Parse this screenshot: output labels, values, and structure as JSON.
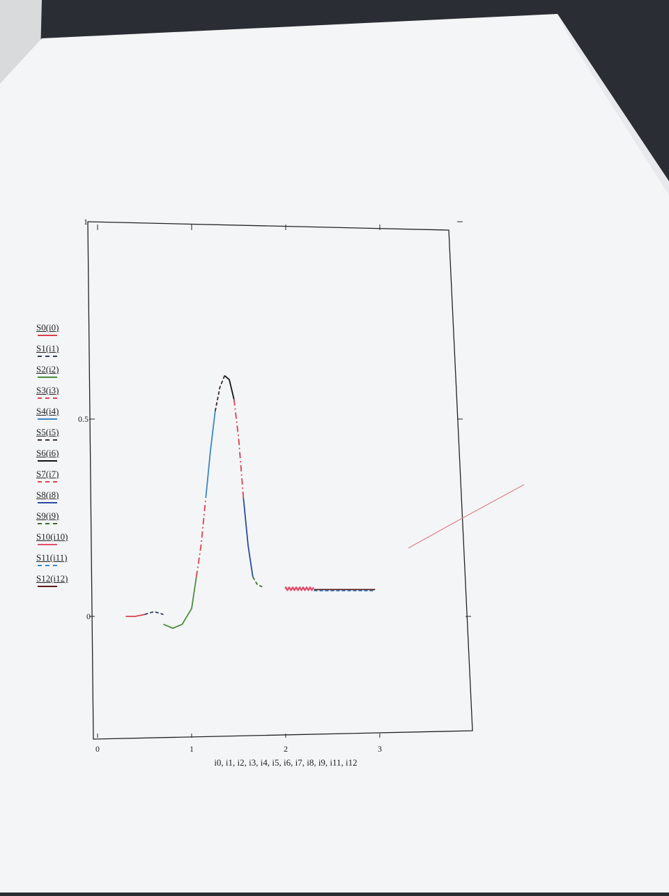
{
  "chart_data": {
    "type": "line",
    "title": "",
    "xlabel": "i0, i1, i2, i3, i4, i5, i6, i7, i8, i9, i11, i12",
    "ylabel": "",
    "xlim": [
      0,
      4
    ],
    "ylim": [
      -0.3,
      1
    ],
    "x_ticks": [
      "0",
      "1",
      "2",
      "3"
    ],
    "y_ticks": [
      "0",
      "0.5",
      "1"
    ],
    "grid": false,
    "legend_position": "left",
    "series": [
      {
        "name": "S0(i0)",
        "color": "#d9404e",
        "dash": "solid",
        "x": [
          0.3,
          0.4,
          0.5
        ],
        "y": [
          0.0,
          0.0,
          0.005
        ]
      },
      {
        "name": "S1(i1)",
        "color": "#2f3c5a",
        "dash": "dashed",
        "x": [
          0.5,
          0.6,
          0.7
        ],
        "y": [
          0.005,
          0.012,
          0.005
        ]
      },
      {
        "name": "S2(i2)",
        "color": "#4b8d3a",
        "dash": "solid",
        "x": [
          0.7,
          0.8,
          0.9,
          1.0,
          1.05
        ],
        "y": [
          -0.02,
          -0.03,
          -0.02,
          0.02,
          0.1
        ]
      },
      {
        "name": "S3(i3)",
        "color": "#d9404e",
        "dash": "dashdot",
        "x": [
          1.05,
          1.1,
          1.15
        ],
        "y": [
          0.1,
          0.18,
          0.3
        ]
      },
      {
        "name": "S4(i4)",
        "color": "#3a86c4",
        "dash": "solid",
        "x": [
          1.15,
          1.2,
          1.25
        ],
        "y": [
          0.3,
          0.42,
          0.52
        ]
      },
      {
        "name": "S5(i5)",
        "color": "#3b2b2b",
        "dash": "dashed",
        "x": [
          1.25,
          1.3,
          1.35
        ],
        "y": [
          0.52,
          0.58,
          0.61
        ]
      },
      {
        "name": "S6(i6)",
        "color": "#111111",
        "dash": "solid",
        "x": [
          1.35,
          1.4,
          1.45
        ],
        "y": [
          0.61,
          0.6,
          0.55
        ]
      },
      {
        "name": "S7(i7)",
        "color": "#d9404e",
        "dash": "dashdot",
        "x": [
          1.45,
          1.5,
          1.55
        ],
        "y": [
          0.55,
          0.45,
          0.3
        ]
      },
      {
        "name": "S8(i8)",
        "color": "#2a4aa0",
        "dash": "solid",
        "x": [
          1.55,
          1.6,
          1.65
        ],
        "y": [
          0.3,
          0.18,
          0.1
        ]
      },
      {
        "name": "S9(i9)",
        "color": "#3d6b2c",
        "dash": "dashed",
        "x": [
          1.65,
          1.7,
          1.75
        ],
        "y": [
          0.1,
          0.08,
          0.075
        ]
      },
      {
        "name": "S10(i10)",
        "color": "#e0506a",
        "dash": "sawtooth",
        "x": [
          2.0,
          2.3
        ],
        "y": [
          0.07,
          0.07
        ]
      },
      {
        "name": "S11(i11)",
        "color": "#3a86c4",
        "dash": "dashed",
        "x": [
          2.3,
          2.95
        ],
        "y": [
          0.065,
          0.065
        ]
      },
      {
        "name": "S12(i12)",
        "color": "#5a1a1a",
        "dash": "solid",
        "x": [
          2.3,
          2.95
        ],
        "y": [
          0.068,
          0.068
        ]
      }
    ]
  },
  "legend": [
    {
      "label": "S0(i0)",
      "color": "#d9404e",
      "style": "solid"
    },
    {
      "label": "S1(i1)",
      "color": "#2f3c5a",
      "style": "dashed"
    },
    {
      "label": "S2(i2)",
      "color": "#4b8d3a",
      "style": "solid"
    },
    {
      "label": "S3(i3)",
      "color": "#d9404e",
      "style": "dashed"
    },
    {
      "label": "S4(i4)",
      "color": "#3a86c4",
      "style": "solid"
    },
    {
      "label": "S5(i5)",
      "color": "#3b2b2b",
      "style": "dashed"
    },
    {
      "label": "S6(i6)",
      "color": "#111111",
      "style": "solid"
    },
    {
      "label": "S7(i7)",
      "color": "#d9404e",
      "style": "dashed"
    },
    {
      "label": "S8(i8)",
      "color": "#2a4aa0",
      "style": "solid"
    },
    {
      "label": "S9(i9)",
      "color": "#3d6b2c",
      "style": "dashed"
    },
    {
      "label": "S10(i10)",
      "color": "#e0506a",
      "style": "solid"
    },
    {
      "label": "S11(i11)",
      "color": "#3a86c4",
      "style": "dashed"
    },
    {
      "label": "S12(i12)",
      "color": "#5a1a1a",
      "style": "solid"
    }
  ],
  "colors": {
    "background": "#2a2d33",
    "paper": "#f4f5f7",
    "paper_shadow": "#e6e7ea",
    "axis": "#222222"
  }
}
